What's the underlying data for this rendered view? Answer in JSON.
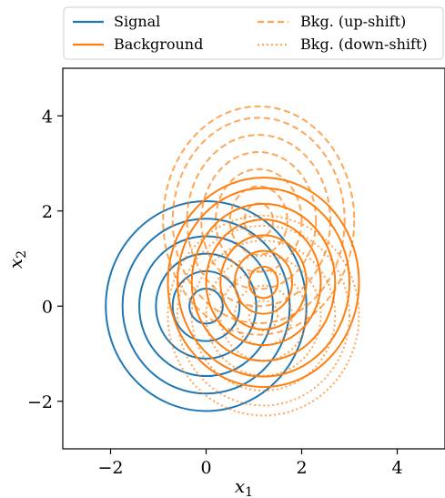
{
  "chart_data": {
    "type": "contour",
    "xlabel": "x",
    "xlabel_sub": "1",
    "ylabel": "x",
    "ylabel_sub": "2",
    "xlim": [
      -3,
      5
    ],
    "ylim": [
      -3,
      5
    ],
    "xticks": [
      -2,
      0,
      2,
      4
    ],
    "yticks": [
      -2,
      0,
      2,
      4
    ],
    "xtick_labels": [
      "−2",
      "0",
      "2",
      "4"
    ],
    "ytick_labels": [
      "−2",
      "0",
      "2",
      "4"
    ],
    "grid": false,
    "legend_position": "top",
    "legend_columns": 2,
    "series": [
      {
        "name": "Signal",
        "style": "solid",
        "color": "#1f77b4",
        "center": [
          0,
          0
        ],
        "contour_radii": [
          0.35,
          0.7,
          1.05,
          1.4,
          1.75,
          2.1
        ],
        "yscale": 1.05
      },
      {
        "name": "Background",
        "style": "solid",
        "color": "#ff7f0e",
        "center": [
          1.2,
          0.5
        ],
        "contour_radii": [
          0.3,
          0.6,
          0.9,
          1.2,
          1.5,
          1.8,
          2.0
        ],
        "yscale": 1.1
      },
      {
        "name": "Bkg. (up-shift)",
        "style": "dashed",
        "color": "#ff7f0e",
        "center": [
          1.1,
          1.8
        ],
        "contour_radii": [
          0.3,
          0.6,
          0.9,
          1.2,
          1.5,
          1.8,
          2.0
        ],
        "yscale": 1.2
      },
      {
        "name": "Bkg. (down-shift)",
        "style": "dotted",
        "color": "#ff7f0e",
        "center": [
          1.2,
          -0.2
        ],
        "contour_radii": [
          0.3,
          0.6,
          0.9,
          1.2,
          1.5,
          1.8,
          2.0
        ],
        "yscale": 1.05
      }
    ]
  }
}
